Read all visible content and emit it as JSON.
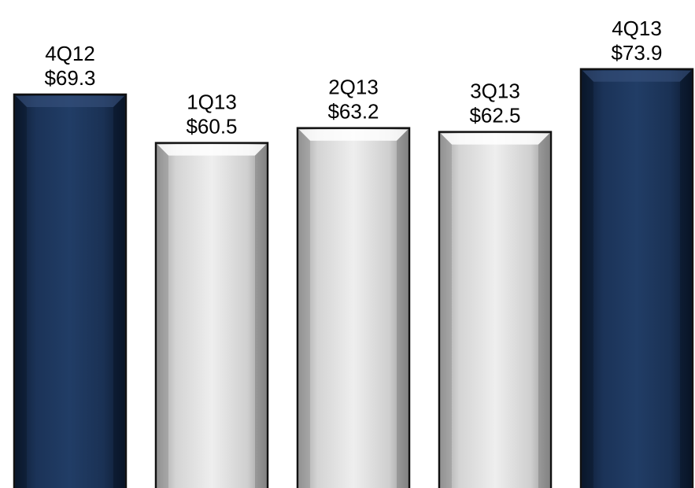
{
  "chart_data": {
    "type": "bar",
    "categories": [
      "4Q12",
      "1Q13",
      "2Q13",
      "3Q13",
      "4Q13"
    ],
    "values": [
      69.3,
      60.5,
      63.2,
      62.5,
      73.9
    ],
    "value_labels": [
      "$69.3",
      "$60.5",
      "$63.2",
      "$62.5",
      "$73.9"
    ],
    "title": "",
    "xlabel": "",
    "ylabel": "",
    "grid": false,
    "legend": "none",
    "bar_colors": [
      "#14294a",
      "#c8c8c8",
      "#c8c8c8",
      "#c8c8c8",
      "#14294a"
    ]
  }
}
